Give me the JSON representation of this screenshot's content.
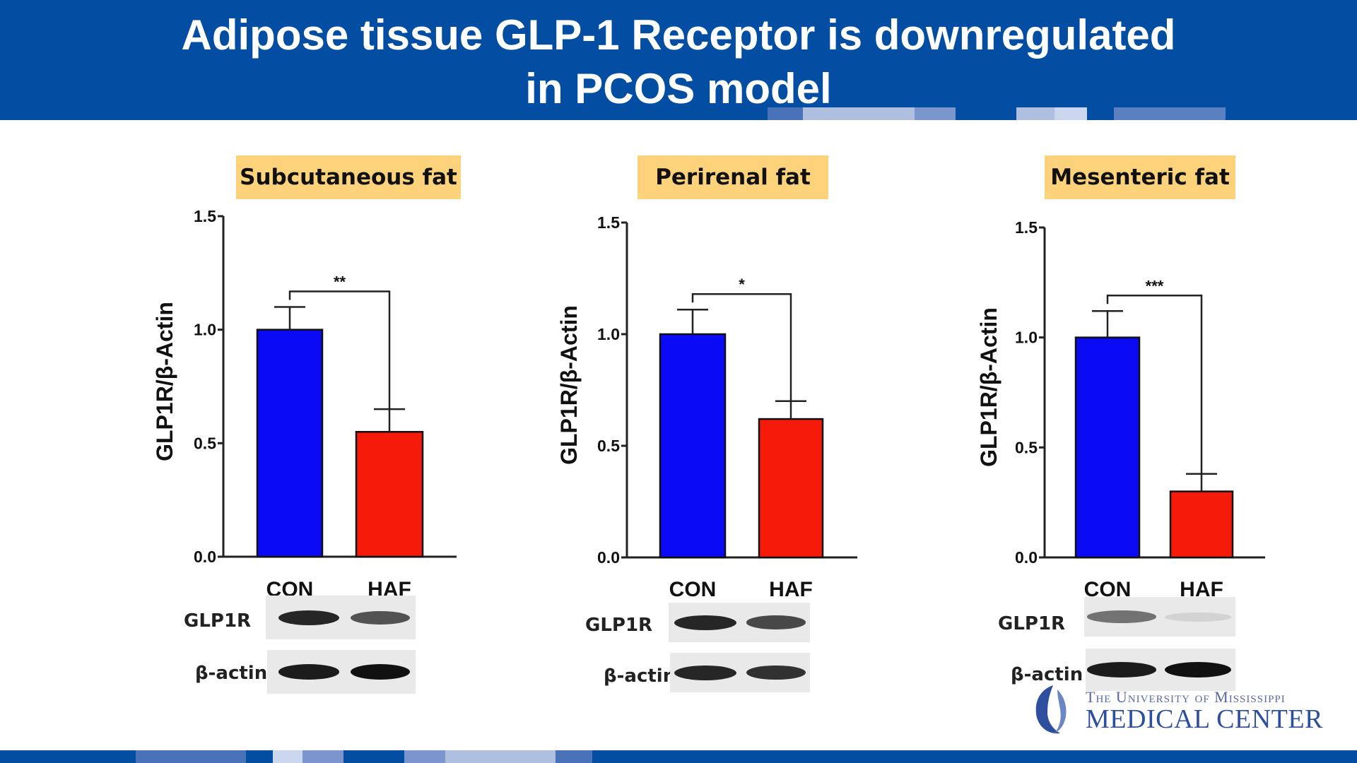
{
  "slide": {
    "title": "Adipose tissue GLP-1 Receptor is downregulated\nin PCOS model"
  },
  "colors": {
    "header": "#034ea2",
    "label_bg": "#fcd27a",
    "con_bar": "#0a0af5",
    "haf_bar": "#f51a0a"
  },
  "chart_data": [
    {
      "type": "bar",
      "panel_label": "Subcutaneous fat",
      "ylabel": "GLP1R/β-Actin",
      "categories": [
        "CON",
        "HAF"
      ],
      "values": [
        1.0,
        0.55
      ],
      "errors": [
        0.1,
        0.1
      ],
      "significance": "**",
      "ylim": [
        0,
        1.5
      ],
      "yticks": [
        "0.0",
        "0.5",
        "1.0",
        "1.5"
      ],
      "blot_labels": [
        "GLP1R",
        "β-actin"
      ],
      "glp1r_band_intensity": [
        0.9,
        0.7
      ],
      "actin_band_intensity": [
        0.95,
        1.0
      ]
    },
    {
      "type": "bar",
      "panel_label": "Perirenal fat",
      "ylabel": "GLP1R/β-Actin",
      "categories": [
        "CON",
        "HAF"
      ],
      "values": [
        1.0,
        0.62
      ],
      "errors": [
        0.11,
        0.08
      ],
      "significance": "*",
      "ylim": [
        0,
        1.5
      ],
      "yticks": [
        "0.0",
        "0.5",
        "1.0",
        "1.5"
      ],
      "blot_labels": [
        "GLP1R",
        "β-actin"
      ],
      "glp1r_band_intensity": [
        0.9,
        0.75
      ],
      "actin_band_intensity": [
        0.9,
        0.85
      ]
    },
    {
      "type": "bar",
      "panel_label": "Mesenteric fat",
      "ylabel": "GLP1R/β-Actin",
      "categories": [
        "CON",
        "HAF"
      ],
      "values": [
        1.0,
        0.3
      ],
      "errors": [
        0.12,
        0.08
      ],
      "significance": "***",
      "ylim": [
        0,
        1.5
      ],
      "yticks": [
        "0.0",
        "0.5",
        "1.0",
        "1.5"
      ],
      "blot_labels": [
        "GLP1R",
        "β-actin"
      ],
      "glp1r_band_intensity": [
        0.55,
        0.1
      ],
      "actin_band_intensity": [
        0.95,
        1.0
      ]
    }
  ],
  "logo": {
    "line1": "The University of Mississippi",
    "line2": "MEDICAL CENTER"
  }
}
